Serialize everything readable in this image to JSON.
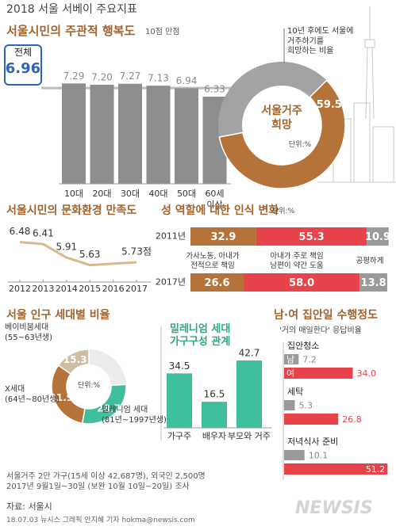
{
  "header": {
    "title": "2018 서울 서베이 주요지표"
  },
  "chart_data": [
    {
      "type": "bar",
      "title": "서울시민의 주관적 행복도",
      "subtitle": "10점 만점",
      "overall": {
        "label": "전체",
        "value": 6.96
      },
      "categories": [
        "10대",
        "20대",
        "30대",
        "40대",
        "50대",
        "60세\n이상"
      ],
      "values": [
        7.29,
        7.2,
        7.27,
        7.13,
        6.94,
        6.33
      ],
      "value_labels": [
        "7.29",
        "7.20",
        "7.27",
        "7.13",
        "6.94",
        "6.33"
      ],
      "color": "#8e8e8e",
      "ylim": [
        0,
        8
      ]
    },
    {
      "type": "pie",
      "title": "서울거주\n희망",
      "annotation": "10년 후에도 서울에\n거주하기를\n희망하는 비율",
      "unit": "단위:%",
      "values": [
        59.5
      ],
      "colors": [
        "#b5733a"
      ],
      "rest_color": "#a3a3a3"
    },
    {
      "type": "line",
      "title": "서울시민의 문화환경 만족도",
      "x": [
        2012,
        2013,
        2014,
        2015,
        2017
      ],
      "values": [
        6.48,
        6.41,
        5.91,
        5.63,
        5.73
      ],
      "value_labels": [
        "6.48",
        "6.41",
        "5.91",
        "5.63",
        "5.73점"
      ],
      "xlim": [
        2012,
        2017
      ],
      "xticks": [
        2012,
        2013,
        2014,
        2015,
        2016,
        2017
      ],
      "ylim": [
        5,
        7
      ],
      "color": "#d9b98a"
    },
    {
      "type": "stacked_hbar",
      "title": "성 역할에 대한 인식 변화",
      "unit": "단위:%",
      "categories": [
        "2011년",
        "2017년"
      ],
      "series": [
        {
          "name": "가사노동, 아내가\n전적으로 책임",
          "color": "#b5733a",
          "values": [
            32.9,
            26.6
          ]
        },
        {
          "name": "아내가 주로 책임\n남편이 약간 도움",
          "color": "#e8424a",
          "values": [
            55.3,
            58.0
          ],
          "value_labels": [
            "55.3",
            "58.0"
          ]
        },
        {
          "name": "공평하게",
          "color": "#9a9a9a",
          "values": [
            10.9,
            13.8
          ]
        }
      ],
      "xlim": [
        0,
        100
      ]
    },
    {
      "type": "pie",
      "title": "서울 인구 세대별 비율",
      "unit": "단위:%",
      "categories": [
        "베이비붐세대\n(55~63년생)",
        "X세대\n(64년~80년생)",
        "밀레니엄 세대\n(81년~1997년생)"
      ],
      "values": [
        15.3,
        31.9,
        28.7
      ],
      "colors": [
        "#cdbda3",
        "#b5733a",
        "#3fbf9b"
      ],
      "rest_color": "#ececec"
    },
    {
      "type": "bar",
      "title": "밀레니엄 세대\n가구구성 관계",
      "categories": [
        "가구주",
        "배우자",
        "부모와 거주"
      ],
      "values": [
        34.5,
        16.5,
        42.7
      ],
      "color": "#3fbf9b",
      "ylim": [
        0,
        50
      ]
    },
    {
      "type": "grouped_hbar",
      "title": "남·여 집안일 수행정도",
      "subtitle": "'거의 매일한다' 응답비율",
      "categories": [
        "집안청소",
        "세탁",
        "저녁식사 준비"
      ],
      "series": [
        {
          "name": "남",
          "color": "#9a9a9a",
          "values": [
            7.2,
            5.3,
            10.1
          ]
        },
        {
          "name": "여",
          "color": "#e8424a",
          "values": [
            34.0,
            26.8,
            51.2
          ],
          "value_labels": [
            "34.0",
            "26.8",
            "51.2"
          ]
        }
      ],
      "xlim": [
        0,
        55
      ]
    }
  ],
  "footer": {
    "note": "서울거주 2만 가구(15세 이상 42,687명), 외국인 2,500명\n2017년 9월1일~30일 (보완 10월 10일~20일) 조사",
    "source": "자료: 서울시",
    "credit": "18.07.03 뉴시스 그래픽 안지혜 기자 hokma@newsis.com",
    "logo": "NEWSIS"
  }
}
